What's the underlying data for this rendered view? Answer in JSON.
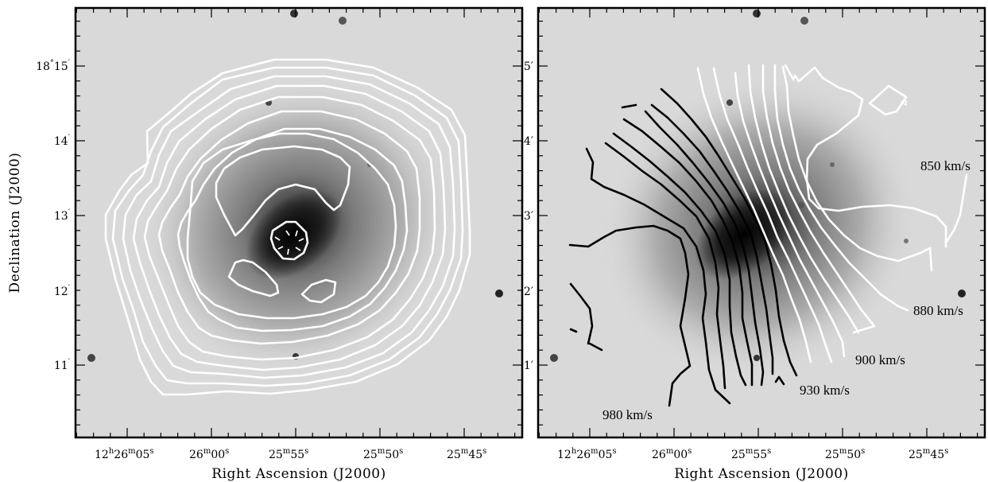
{
  "left_panel": {
    "ra_labels": [
      {
        "h": "12",
        "m": "26",
        "s": "05"
      },
      {
        "h": "",
        "m": "26",
        "s": "00"
      },
      {
        "h": "",
        "m": "25",
        "s": "55"
      },
      {
        "h": "",
        "m": "25",
        "s": "50"
      },
      {
        "h": "",
        "m": "25",
        "s": "45"
      }
    ],
    "dec_labels": [
      {
        "deg": "18",
        "min": "15"
      },
      {
        "deg": "",
        "min": "14"
      },
      {
        "deg": "",
        "min": "13"
      },
      {
        "deg": "",
        "min": "12"
      },
      {
        "deg": "",
        "min": "11"
      }
    ],
    "xlabel": "Right Ascension (J2000)",
    "ylabel": "Declination (J2000)"
  },
  "right_panel": {
    "ra_labels": [
      {
        "h": "12",
        "m": "26",
        "s": "05"
      },
      {
        "h": "",
        "m": "26",
        "s": "00"
      },
      {
        "h": "",
        "m": "25",
        "s": "55"
      },
      {
        "h": "",
        "m": "25",
        "s": "50"
      },
      {
        "h": "",
        "m": "25",
        "s": "45"
      }
    ],
    "offset_labels": [
      "5′",
      "4′",
      "3′",
      "2′",
      "1′"
    ],
    "xlabel": "Right Ascension (J2000)",
    "velocity_labels": [
      "850 km/s",
      "880 km/s",
      "900 km/s",
      "930 km/s",
      "980 km/s"
    ]
  },
  "colors": {
    "background_sky": "#d9d9d9",
    "contour_white": "#ffffff",
    "contour_black": "#000000"
  }
}
